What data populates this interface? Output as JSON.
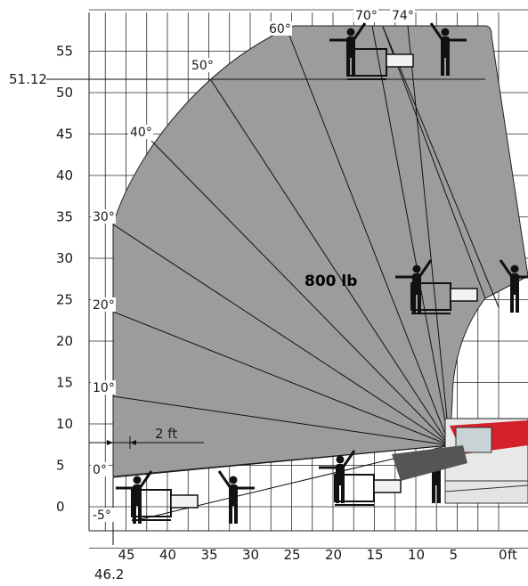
{
  "chart_data": {
    "type": "load_chart",
    "load_label": "800 lb",
    "x_unit": "ft",
    "x_ticks": [
      45,
      40,
      35,
      30,
      25,
      20,
      15,
      10,
      5,
      0
    ],
    "y_ticks": [
      0,
      5,
      10,
      15,
      20,
      25,
      30,
      35,
      40,
      45,
      50,
      55
    ],
    "x_extra": "46.2",
    "y_extra": "51.12",
    "angles": [
      {
        "label": "-5°",
        "deg": -5
      },
      {
        "label": "0°",
        "deg": 0
      },
      {
        "label": "10°",
        "deg": 10
      },
      {
        "label": "20°",
        "deg": 20
      },
      {
        "label": "30°",
        "deg": 30
      },
      {
        "label": "40°",
        "deg": 40
      },
      {
        "label": "50°",
        "deg": 50
      },
      {
        "label": "60°",
        "deg": 60
      },
      {
        "label": "70°",
        "deg": 70
      },
      {
        "label": "74°",
        "deg": 74
      }
    ],
    "dimension_label": "2 ft",
    "grid": true
  }
}
